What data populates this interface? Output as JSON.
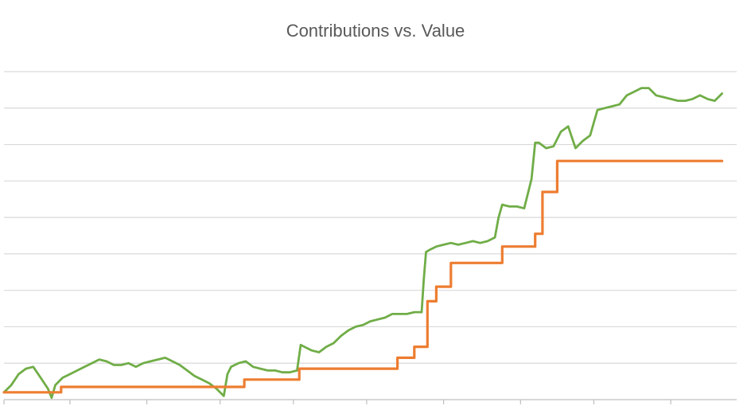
{
  "chart_data": {
    "type": "line",
    "title": "Contributions vs. Value",
    "xlabel": "",
    "ylabel": "",
    "x_range": [
      0,
      100
    ],
    "ylim": [
      0,
      9
    ],
    "y_gridlines": [
      0,
      1,
      2,
      3,
      4,
      5,
      6,
      7,
      8,
      9
    ],
    "x_ticks": [
      0,
      9,
      19.5,
      29.5,
      39.5,
      49.5,
      60,
      70.5,
      80.5,
      91
    ],
    "grid": true,
    "legend": "none",
    "series": [
      {
        "color": "#70AD47",
        "x": [
          0,
          1,
          2,
          3,
          4,
          5,
          6,
          6.5,
          7,
          8,
          9,
          10,
          11,
          12,
          13,
          14,
          15,
          16,
          17,
          18,
          19,
          20,
          21,
          22,
          23,
          24,
          25,
          26,
          27,
          28,
          29,
          30,
          30.5,
          31,
          32,
          33,
          34,
          35,
          36,
          37,
          38,
          39,
          40,
          40.5,
          41,
          42,
          43,
          44,
          45,
          46,
          47,
          48,
          49,
          50,
          51,
          52,
          53,
          54,
          55,
          56,
          57,
          57.3,
          57.6,
          58,
          59,
          60,
          61,
          62,
          63,
          64,
          65,
          66,
          67,
          67.5,
          68,
          69,
          70,
          71,
          72,
          72.5,
          73,
          74,
          75,
          76,
          77,
          78,
          79,
          80,
          81,
          82,
          83,
          84,
          85,
          86,
          87,
          88,
          89,
          90,
          91,
          92,
          93,
          94,
          95,
          96,
          97,
          98
        ],
        "y": [
          0.2,
          0.4,
          0.7,
          0.85,
          0.9,
          0.6,
          0.3,
          0.05,
          0.4,
          0.6,
          0.7,
          0.8,
          0.9,
          1.0,
          1.1,
          1.05,
          0.95,
          0.95,
          1.0,
          0.9,
          1.0,
          1.05,
          1.1,
          1.15,
          1.05,
          0.95,
          0.8,
          0.65,
          0.55,
          0.45,
          0.3,
          0.1,
          0.7,
          0.9,
          1.0,
          1.05,
          0.9,
          0.85,
          0.8,
          0.8,
          0.75,
          0.75,
          0.8,
          1.5,
          1.45,
          1.35,
          1.3,
          1.45,
          1.55,
          1.75,
          1.9,
          2.0,
          2.05,
          2.15,
          2.2,
          2.25,
          2.35,
          2.35,
          2.35,
          2.4,
          2.4,
          3.3,
          4.05,
          4.1,
          4.2,
          4.25,
          4.3,
          4.25,
          4.3,
          4.35,
          4.3,
          4.35,
          4.45,
          5.0,
          5.35,
          5.3,
          5.3,
          5.25,
          6.05,
          7.05,
          7.05,
          6.9,
          6.95,
          7.35,
          7.5,
          6.9,
          7.1,
          7.25,
          7.95,
          8.0,
          8.05,
          8.1,
          8.35,
          8.45,
          8.55,
          8.55,
          8.35,
          8.3,
          8.25,
          8.2,
          8.2,
          8.25,
          8.35,
          8.25,
          8.2,
          8.4
        ]
      },
      {
        "color": "#ED7D31",
        "x": [
          0,
          7.8,
          7.8,
          32.8,
          32.8,
          40.3,
          40.3,
          53.7,
          53.7,
          56,
          56,
          57.8,
          57.8,
          59,
          59,
          61,
          61,
          68,
          68,
          72.5,
          72.5,
          73.5,
          73.5,
          75.5,
          75.5,
          98
        ],
        "y": [
          0.2,
          0.2,
          0.35,
          0.35,
          0.55,
          0.55,
          0.85,
          0.85,
          1.15,
          1.15,
          1.45,
          1.45,
          2.7,
          2.7,
          3.1,
          3.1,
          3.75,
          3.75,
          4.2,
          4.2,
          4.55,
          4.55,
          5.7,
          5.7,
          6.55,
          6.55
        ]
      }
    ]
  }
}
